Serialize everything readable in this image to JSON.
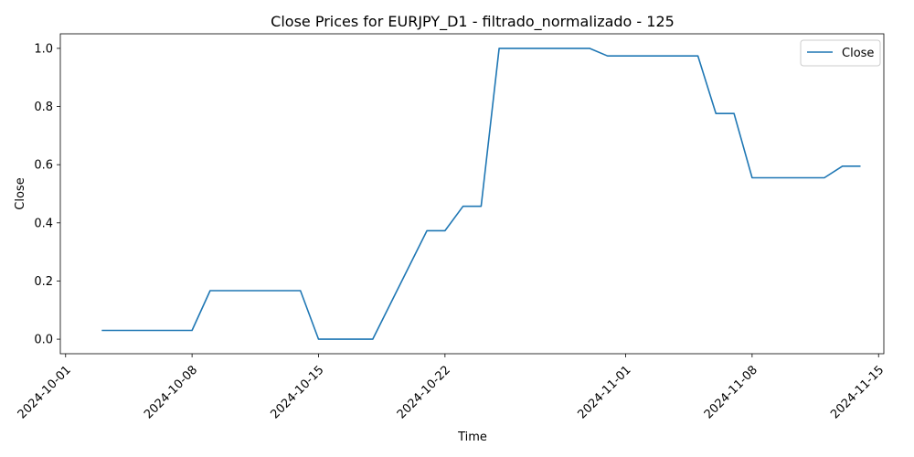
{
  "chart_data": {
    "type": "line",
    "title": "Close Prices for EURJPY_D1 - filtrado_normalizado - 125",
    "xlabel": "Time",
    "ylabel": "Close",
    "xlim": [
      "2024-09-30T17:00",
      "2024-11-15T07:00"
    ],
    "ylim": [
      -0.05,
      1.05
    ],
    "x_ticks": [
      "2024-10-01",
      "2024-10-08",
      "2024-10-15",
      "2024-10-22",
      "2024-11-01",
      "2024-11-08",
      "2024-11-15"
    ],
    "y_ticks": [
      "0.0",
      "0.2",
      "0.4",
      "0.6",
      "0.8",
      "1.0"
    ],
    "grid": false,
    "legend": "top-right",
    "series": [
      {
        "name": "Close",
        "color": "#1f77b4",
        "x": [
          "2024-10-03",
          "2024-10-04",
          "2024-10-07",
          "2024-10-08",
          "2024-10-09",
          "2024-10-10",
          "2024-10-11",
          "2024-10-14",
          "2024-10-15",
          "2024-10-16",
          "2024-10-17",
          "2024-10-18",
          "2024-10-21",
          "2024-10-22",
          "2024-10-23",
          "2024-10-24",
          "2024-10-25",
          "2024-10-28",
          "2024-10-29",
          "2024-10-30",
          "2024-10-31",
          "2024-11-01",
          "2024-11-04",
          "2024-11-05",
          "2024-11-06",
          "2024-11-07",
          "2024-11-08",
          "2024-11-11",
          "2024-11-12",
          "2024-11-13",
          "2024-11-14"
        ],
        "y": [
          0.03,
          0.03,
          0.03,
          0.03,
          0.167,
          0.167,
          0.167,
          0.167,
          0.0,
          0.0,
          0.0,
          0.0,
          0.373,
          0.373,
          0.457,
          0.457,
          1.0,
          1.0,
          1.0,
          1.0,
          0.974,
          0.974,
          0.974,
          0.974,
          0.776,
          0.776,
          0.555,
          0.555,
          0.555,
          0.595,
          0.595
        ]
      }
    ]
  }
}
